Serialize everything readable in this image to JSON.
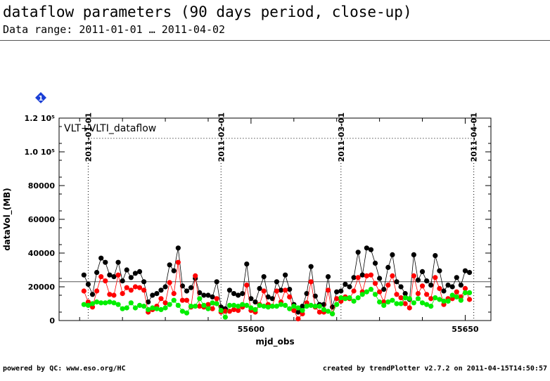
{
  "header": {
    "title": "dataflow parameters (90 days period, close-up)",
    "subtitle": "Data range: 2011-01-01 … 2011-04-02"
  },
  "footer": {
    "left": "powered by QC: www.eso.org/HC",
    "right": "created by trendPlotter v2.7.2 on 2011-04-15T14:50:57"
  },
  "badge": {
    "label": "1",
    "color": "#1a3fd6"
  },
  "chart_data": {
    "type": "scatter",
    "xlabel": "mjd_obs",
    "ylabel": "dataVol_(MB)",
    "xlim": [
      55555.2,
      55656.0
    ],
    "ylim": [
      0,
      120000
    ],
    "x_ticks": [
      55600,
      55650
    ],
    "y_ticks": [
      {
        "value": 0,
        "label": "0"
      },
      {
        "value": 20000,
        "label": "20000"
      },
      {
        "value": 40000,
        "label": "40000"
      },
      {
        "value": 60000,
        "label": "60000"
      },
      {
        "value": 80000,
        "label": "80000"
      },
      {
        "value": 100000,
        "label": "1.0 10⁵"
      },
      {
        "value": 120000,
        "label": "1.2 10⁵"
      }
    ],
    "date_markers": [
      {
        "x": 55562,
        "label": "2011-01-01"
      },
      {
        "x": 55593,
        "label": "2011-02-01"
      },
      {
        "x": 55621,
        "label": "2011-03-01"
      },
      {
        "x": 55652,
        "label": "2011-04-01"
      }
    ],
    "panel_label": "VLT+VLTI_dataflow",
    "reference_line": 23000,
    "upper_dotted_line": 108000,
    "series": [
      {
        "color": "#000000",
        "points": [
          [
            55561,
            27000
          ],
          [
            55562,
            21500
          ],
          [
            55563,
            15500
          ],
          [
            55564,
            28500
          ],
          [
            55565,
            37000
          ],
          [
            55566,
            34500
          ],
          [
            55567,
            27000
          ],
          [
            55568,
            26000
          ],
          [
            55569,
            34500
          ],
          [
            55570,
            23500
          ],
          [
            55571,
            30000
          ],
          [
            55572,
            25500
          ],
          [
            55573,
            28000
          ],
          [
            55574,
            29000
          ],
          [
            55575,
            23000
          ],
          [
            55576,
            11000
          ],
          [
            55577,
            15000
          ],
          [
            55578,
            16000
          ],
          [
            55579,
            18000
          ],
          [
            55580,
            20000
          ],
          [
            55581,
            33000
          ],
          [
            55582,
            29500
          ],
          [
            55583,
            43000
          ],
          [
            55584,
            20500
          ],
          [
            55585,
            17500
          ],
          [
            55586,
            19500
          ],
          [
            55587,
            25000
          ],
          [
            55588,
            16500
          ],
          [
            55589,
            15000
          ],
          [
            55590,
            15000
          ],
          [
            55591,
            14000
          ],
          [
            55592,
            23000
          ],
          [
            55593,
            8000
          ],
          [
            55594,
            7000
          ],
          [
            55595,
            18000
          ],
          [
            55596,
            16000
          ],
          [
            55597,
            15000
          ],
          [
            55598,
            16000
          ],
          [
            55599,
            33500
          ],
          [
            55600,
            13000
          ],
          [
            55601,
            11000
          ],
          [
            55602,
            19000
          ],
          [
            55603,
            26000
          ],
          [
            55604,
            14000
          ],
          [
            55605,
            13000
          ],
          [
            55606,
            23000
          ],
          [
            55607,
            18000
          ],
          [
            55608,
            27000
          ],
          [
            55609,
            18500
          ],
          [
            55610,
            9500
          ],
          [
            55611,
            5000
          ],
          [
            55612,
            8500
          ],
          [
            55613,
            16000
          ],
          [
            55614,
            32000
          ],
          [
            55615,
            14500
          ],
          [
            55616,
            9500
          ],
          [
            55617,
            9500
          ],
          [
            55618,
            26000
          ],
          [
            55619,
            8000
          ],
          [
            55620,
            17000
          ],
          [
            55621,
            17500
          ],
          [
            55622,
            21500
          ],
          [
            55623,
            20000
          ],
          [
            55624,
            25500
          ],
          [
            55625,
            40500
          ],
          [
            55626,
            27000
          ],
          [
            55627,
            43000
          ],
          [
            55628,
            42000
          ],
          [
            55629,
            34000
          ],
          [
            55630,
            25000
          ],
          [
            55631,
            18500
          ],
          [
            55632,
            31500
          ],
          [
            55633,
            39000
          ],
          [
            55634,
            23000
          ],
          [
            55635,
            20000
          ],
          [
            55636,
            16000
          ],
          [
            55637,
            12500
          ],
          [
            55638,
            39000
          ],
          [
            55639,
            24000
          ],
          [
            55640,
            29000
          ],
          [
            55641,
            23500
          ],
          [
            55642,
            21000
          ],
          [
            55643,
            38500
          ],
          [
            55644,
            29500
          ],
          [
            55645,
            17500
          ],
          [
            55646,
            21000
          ],
          [
            55647,
            20000
          ],
          [
            55648,
            25500
          ],
          [
            55649,
            21000
          ],
          [
            55650,
            29500
          ],
          [
            55651,
            28500
          ]
        ]
      },
      {
        "color": "#ff0000",
        "points": [
          [
            55561,
            17500
          ],
          [
            55562,
            11000
          ],
          [
            55563,
            8000
          ],
          [
            55564,
            17500
          ],
          [
            55565,
            26000
          ],
          [
            55566,
            23500
          ],
          [
            55567,
            15500
          ],
          [
            55568,
            15000
          ],
          [
            55569,
            27000
          ],
          [
            55570,
            16000
          ],
          [
            55571,
            19500
          ],
          [
            55572,
            18000
          ],
          [
            55573,
            20000
          ],
          [
            55574,
            19500
          ],
          [
            55575,
            18000
          ],
          [
            55576,
            5000
          ],
          [
            55577,
            6500
          ],
          [
            55578,
            8500
          ],
          [
            55579,
            13000
          ],
          [
            55580,
            10500
          ],
          [
            55581,
            22500
          ],
          [
            55582,
            16000
          ],
          [
            55583,
            34500
          ],
          [
            55584,
            12000
          ],
          [
            55585,
            12000
          ],
          [
            55586,
            8000
          ],
          [
            55587,
            26500
          ],
          [
            55588,
            8500
          ],
          [
            55589,
            8000
          ],
          [
            55590,
            9500
          ],
          [
            55591,
            7000
          ],
          [
            55592,
            13000
          ],
          [
            55593,
            5000
          ],
          [
            55594,
            5500
          ],
          [
            55595,
            5500
          ],
          [
            55596,
            6500
          ],
          [
            55597,
            6000
          ],
          [
            55598,
            8000
          ],
          [
            55599,
            21000
          ],
          [
            55600,
            6000
          ],
          [
            55601,
            5000
          ],
          [
            55602,
            9500
          ],
          [
            55603,
            17500
          ],
          [
            55604,
            9500
          ],
          [
            55605,
            8500
          ],
          [
            55606,
            17500
          ],
          [
            55607,
            11000
          ],
          [
            55608,
            18000
          ],
          [
            55609,
            14000
          ],
          [
            55610,
            6000
          ],
          [
            55611,
            1000
          ],
          [
            55612,
            4000
          ],
          [
            55613,
            10500
          ],
          [
            55614,
            23000
          ],
          [
            55615,
            8000
          ],
          [
            55616,
            5000
          ],
          [
            55617,
            5000
          ],
          [
            55618,
            18000
          ],
          [
            55619,
            4000
          ],
          [
            55620,
            13000
          ],
          [
            55621,
            11500
          ],
          [
            55622,
            14000
          ],
          [
            55623,
            13000
          ],
          [
            55624,
            17500
          ],
          [
            55625,
            25500
          ],
          [
            55626,
            17000
          ],
          [
            55627,
            26500
          ],
          [
            55628,
            27000
          ],
          [
            55629,
            22000
          ],
          [
            55630,
            17000
          ],
          [
            55631,
            11000
          ],
          [
            55632,
            21000
          ],
          [
            55633,
            26500
          ],
          [
            55634,
            15500
          ],
          [
            55635,
            13500
          ],
          [
            55636,
            10000
          ],
          [
            55637,
            7500
          ],
          [
            55638,
            26500
          ],
          [
            55639,
            16000
          ],
          [
            55640,
            20500
          ],
          [
            55641,
            15500
          ],
          [
            55642,
            13000
          ],
          [
            55643,
            25500
          ],
          [
            55644,
            19000
          ],
          [
            55645,
            9500
          ],
          [
            55646,
            13000
          ],
          [
            55647,
            13000
          ],
          [
            55648,
            17000
          ],
          [
            55649,
            14000
          ],
          [
            55650,
            19000
          ],
          [
            55651,
            12500
          ]
        ]
      },
      {
        "color": "#00ee00",
        "points": [
          [
            55561,
            9500
          ],
          [
            55562,
            9000
          ],
          [
            55563,
            10000
          ],
          [
            55564,
            11000
          ],
          [
            55565,
            10500
          ],
          [
            55566,
            10500
          ],
          [
            55567,
            11000
          ],
          [
            55568,
            10500
          ],
          [
            55569,
            9500
          ],
          [
            55570,
            7000
          ],
          [
            55571,
            7500
          ],
          [
            55572,
            10500
          ],
          [
            55573,
            7500
          ],
          [
            55574,
            9000
          ],
          [
            55575,
            8500
          ],
          [
            55576,
            6500
          ],
          [
            55577,
            7500
          ],
          [
            55578,
            7000
          ],
          [
            55579,
            6500
          ],
          [
            55580,
            7500
          ],
          [
            55581,
            9500
          ],
          [
            55582,
            12000
          ],
          [
            55583,
            9000
          ],
          [
            55584,
            5500
          ],
          [
            55585,
            4500
          ],
          [
            55586,
            8500
          ],
          [
            55587,
            8500
          ],
          [
            55588,
            13000
          ],
          [
            55589,
            9000
          ],
          [
            55590,
            7000
          ],
          [
            55591,
            10500
          ],
          [
            55592,
            10000
          ],
          [
            55593,
            6000
          ],
          [
            55594,
            2000
          ],
          [
            55595,
            9000
          ],
          [
            55596,
            9000
          ],
          [
            55597,
            8500
          ],
          [
            55598,
            9500
          ],
          [
            55599,
            9000
          ],
          [
            55600,
            7500
          ],
          [
            55601,
            6500
          ],
          [
            55602,
            9000
          ],
          [
            55603,
            8500
          ],
          [
            55604,
            8000
          ],
          [
            55605,
            8500
          ],
          [
            55606,
            8500
          ],
          [
            55607,
            9500
          ],
          [
            55608,
            9000
          ],
          [
            55609,
            7000
          ],
          [
            55610,
            8500
          ],
          [
            55611,
            7500
          ],
          [
            55612,
            6000
          ],
          [
            55613,
            8500
          ],
          [
            55614,
            9000
          ],
          [
            55615,
            8500
          ],
          [
            55616,
            8500
          ],
          [
            55617,
            6500
          ],
          [
            55618,
            5500
          ],
          [
            55619,
            4000
          ],
          [
            55620,
            9500
          ],
          [
            55621,
            13500
          ],
          [
            55622,
            13000
          ],
          [
            55623,
            13500
          ],
          [
            55624,
            11500
          ],
          [
            55625,
            13500
          ],
          [
            55626,
            15500
          ],
          [
            55627,
            17000
          ],
          [
            55628,
            18500
          ],
          [
            55629,
            15500
          ],
          [
            55630,
            11000
          ],
          [
            55631,
            9000
          ],
          [
            55632,
            11000
          ],
          [
            55633,
            12000
          ],
          [
            55634,
            10000
          ],
          [
            55635,
            10000
          ],
          [
            55636,
            13500
          ],
          [
            55637,
            13000
          ],
          [
            55638,
            10500
          ],
          [
            55639,
            13000
          ],
          [
            55640,
            10500
          ],
          [
            55641,
            9500
          ],
          [
            55642,
            8500
          ],
          [
            55643,
            13500
          ],
          [
            55644,
            12500
          ],
          [
            55645,
            11500
          ],
          [
            55646,
            11500
          ],
          [
            55647,
            15000
          ],
          [
            55648,
            14000
          ],
          [
            55649,
            12000
          ],
          [
            55650,
            16500
          ],
          [
            55651,
            16500
          ]
        ]
      }
    ]
  }
}
